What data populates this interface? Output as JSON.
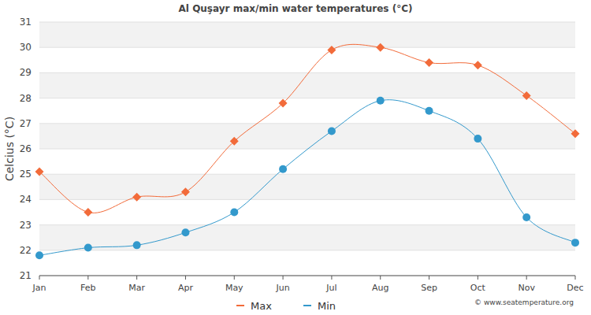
{
  "chart_data": {
    "type": "line",
    "title": "Al Quşayr max/min water temperatures (°C)",
    "y_label": "Celcius (°C)",
    "categories": [
      "Jan",
      "Feb",
      "Mar",
      "Apr",
      "May",
      "Jun",
      "Jul",
      "Aug",
      "Sep",
      "Oct",
      "Nov",
      "Dec"
    ],
    "series": [
      {
        "name": "Max",
        "color": "#f26b3a",
        "marker": "diamond",
        "values": [
          25.1,
          23.5,
          24.1,
          24.3,
          26.3,
          27.8,
          29.9,
          30.0,
          29.4,
          29.3,
          28.1,
          26.6
        ]
      },
      {
        "name": "Min",
        "color": "#3399cc",
        "marker": "circle",
        "values": [
          21.8,
          22.1,
          22.2,
          22.7,
          23.5,
          25.2,
          26.7,
          27.9,
          27.5,
          26.4,
          23.3,
          22.3
        ]
      }
    ],
    "ylim": [
      21,
      31
    ],
    "yticks": [
      21,
      22,
      23,
      24,
      25,
      26,
      27,
      28,
      29,
      30,
      31
    ],
    "grid": true,
    "legend": "bottom",
    "annotations": [
      "© www.seatemperature.org"
    ]
  }
}
